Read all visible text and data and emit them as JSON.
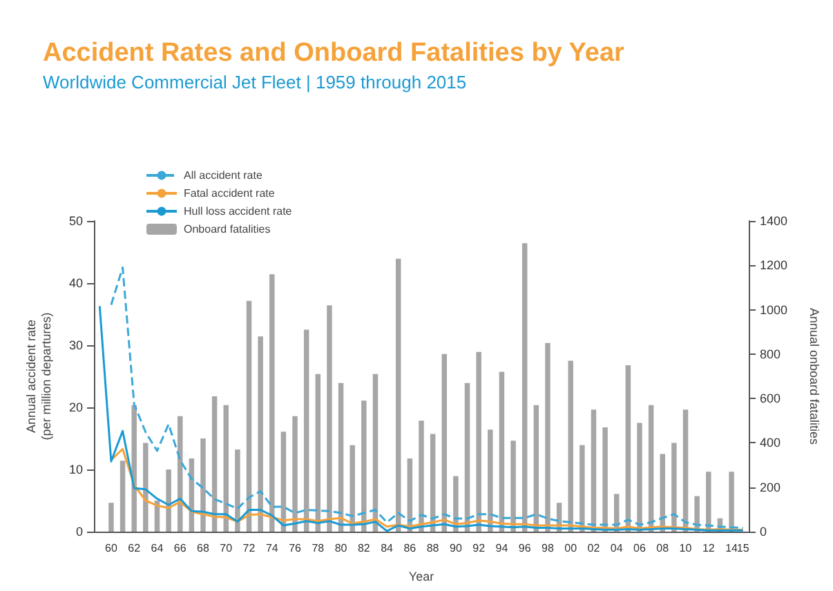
{
  "chart_data": {
    "type": "line",
    "title": "Accident Rates and Onboard Fatalities by Year",
    "subtitle": "Worldwide Commercial Jet Fleet | 1959 through 2015",
    "xlabel": "Year",
    "ylabel": "Annual accident rate\n(per million departures)",
    "y2label": "Annual onboard fatalities",
    "categories": [
      null,
      "60",
      null,
      "62",
      null,
      "64",
      null,
      "66",
      null,
      "68",
      null,
      "70",
      null,
      "72",
      null,
      "74",
      null,
      "76",
      null,
      "78",
      null,
      "80",
      null,
      "82",
      null,
      "84",
      null,
      "86",
      null,
      "88",
      null,
      "90",
      null,
      "92",
      null,
      "94",
      null,
      "96",
      null,
      "98",
      null,
      "00",
      null,
      "02",
      null,
      "04",
      null,
      "06",
      null,
      "08",
      null,
      "10",
      null,
      "12",
      null,
      "14",
      "15"
    ],
    "series": [
      {
        "name": "All accident rate",
        "line_style": "dashed",
        "color": "#3aa8d8",
        "values": [
          null,
          36.5,
          42.5,
          20.5,
          16,
          13,
          17.3,
          11.5,
          8.5,
          7,
          5.2,
          4.5,
          3.7,
          5.5,
          6.5,
          4,
          4,
          3,
          3.5,
          3.4,
          3.3,
          3,
          2.5,
          3,
          3.5,
          1.5,
          3,
          1.7,
          2.7,
          2.1,
          2.8,
          2.1,
          2.1,
          2.8,
          2.8,
          2.2,
          2.2,
          2.2,
          2.8,
          2.1,
          1.7,
          1.5,
          1.3,
          1.1,
          1.1,
          1.1,
          1.9,
          1.1,
          1.5,
          2.2,
          2.8,
          1.5,
          1.1,
          1,
          0.8,
          0.7,
          0.6
        ]
      },
      {
        "name": "Fatal accident rate",
        "line_style": "solid",
        "color": "#f5a23a",
        "values": [
          null,
          11.5,
          13.3,
          7.5,
          5,
          4.2,
          3.8,
          4.8,
          3.2,
          2.8,
          2.4,
          2.3,
          1.6,
          2.7,
          2.8,
          2.3,
          1.8,
          2,
          2,
          1.7,
          2,
          2.2,
          1.3,
          1.6,
          2,
          0.8,
          1.1,
          0.8,
          1.2,
          1.5,
          1.9,
          1.2,
          1.4,
          1.8,
          1.6,
          1.3,
          1.2,
          1.2,
          1,
          1,
          1,
          1,
          0.8,
          0.6,
          0.6,
          0.5,
          0.8,
          0.5,
          0.7,
          0.8,
          0.7,
          0.6,
          0.4,
          0.3,
          0.4,
          0.3,
          0.3
        ]
      },
      {
        "name": "Hull loss accident rate",
        "line_style": "solid",
        "color": "#1b9ad2",
        "values": [
          36.3,
          11.3,
          16.2,
          7,
          6.8,
          5.3,
          4.3,
          5.3,
          3.3,
          3.2,
          2.8,
          2.8,
          1.6,
          3.5,
          3.5,
          2.6,
          1,
          1.3,
          1.7,
          1.4,
          1.7,
          1.1,
          1.1,
          1.2,
          1.6,
          0.1,
          1,
          0.5,
          0.8,
          1,
          1.2,
          0.8,
          0.9,
          1.1,
          0.9,
          0.8,
          0.7,
          0.8,
          0.6,
          0.6,
          0.5,
          0.5,
          0.5,
          0.4,
          0.3,
          0.3,
          0.4,
          0.3,
          0.4,
          0.5,
          0.5,
          0.4,
          0.3,
          0.2,
          0.2,
          0.2,
          0.2
        ]
      },
      {
        "name": "Onboard fatalities",
        "type": "bar",
        "axis": "y2",
        "color": "#a6a6a6",
        "values": [
          null,
          130,
          320,
          570,
          400,
          140,
          280,
          520,
          330,
          420,
          610,
          570,
          370,
          1040,
          880,
          1160,
          450,
          520,
          910,
          710,
          1020,
          670,
          390,
          590,
          710,
          null,
          1230,
          330,
          500,
          440,
          800,
          250,
          670,
          810,
          460,
          720,
          410,
          1300,
          570,
          850,
          130,
          770,
          390,
          550,
          470,
          170,
          750,
          490,
          570,
          350,
          400,
          550,
          160,
          270,
          60,
          270,
          null
        ]
      }
    ],
    "ylim": [
      0,
      50
    ],
    "yticks": [
      0,
      10,
      20,
      30,
      40,
      50
    ],
    "y2lim": [
      0,
      1400
    ],
    "y2ticks": [
      0,
      200,
      400,
      600,
      800,
      1000,
      1200,
      1400
    ],
    "grid": false,
    "legend": "top left",
    "marker": "none"
  }
}
